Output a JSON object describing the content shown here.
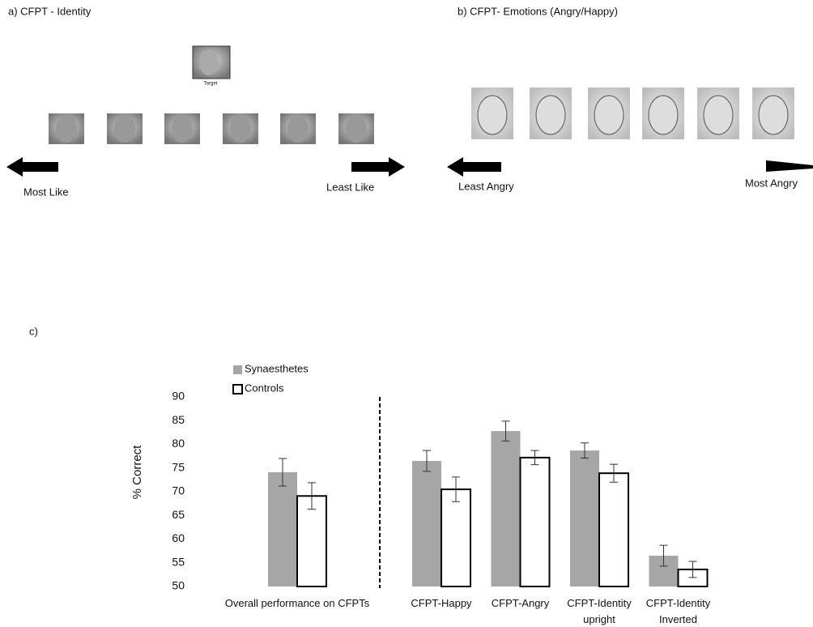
{
  "panels": {
    "a": {
      "title": "a) CFPT - Identity",
      "target_label": "Target",
      "left_label": "Most Like",
      "right_label": "Least Like"
    },
    "b": {
      "title": "b) CFPT- Emotions (Angry/Happy)",
      "left_label": "Least Angry",
      "right_label": "Most Angry"
    },
    "c": {
      "title": "c)"
    }
  },
  "chart_data": {
    "type": "bar",
    "ylabel": "% Correct",
    "categories": [
      "Overall performance on CFPTs",
      "CFPT-Happy",
      "CFPT-Angry",
      "CFPT-Identity upright",
      "CFPT-Identity Inverted"
    ],
    "series": [
      {
        "name": "Synaesthetes",
        "color": "#a6a6a6",
        "values": [
          74.1,
          76.5,
          82.8,
          78.7,
          56.5
        ],
        "errors": [
          2.9,
          2.2,
          2.1,
          1.6,
          2.2
        ]
      },
      {
        "name": "Controls",
        "color": "#ffffff",
        "values": [
          69.1,
          70.5,
          77.2,
          73.9,
          53.6
        ],
        "errors": [
          2.8,
          2.6,
          1.5,
          1.9,
          1.7
        ]
      }
    ],
    "ylim": [
      50,
      90
    ],
    "yticks": [
      50,
      55,
      60,
      65,
      70,
      75,
      80,
      85,
      90
    ],
    "grid": false
  }
}
